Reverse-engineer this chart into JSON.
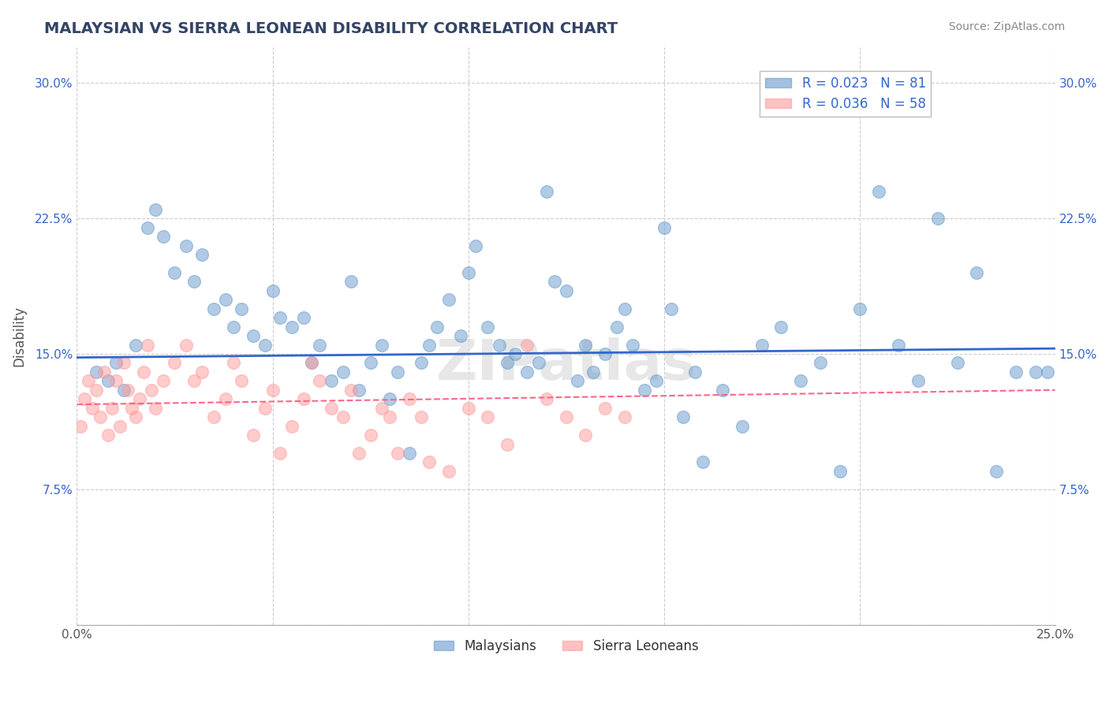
{
  "title": "MALAYSIAN VS SIERRA LEONEAN DISABILITY CORRELATION CHART",
  "source_text": "Source: ZipAtlas.com",
  "ylabel": "Disability",
  "legend_entry1": "R = 0.023   N = 81",
  "legend_entry2": "R = 0.036   N = 58",
  "legend_label1": "Malaysians",
  "legend_label2": "Sierra Leoneans",
  "xlim": [
    0.0,
    0.25
  ],
  "ylim": [
    0.0,
    0.32
  ],
  "xticks": [
    0.0,
    0.05,
    0.1,
    0.15,
    0.2,
    0.25
  ],
  "yticks": [
    0.0,
    0.075,
    0.15,
    0.225,
    0.3
  ],
  "grid_color": "#cccccc",
  "blue_color": "#6699cc",
  "pink_color": "#ff9999",
  "trendline_blue": "#3366cc",
  "trendline_pink": "#ff6688",
  "watermark_text": "ZIPatlas",
  "blue_scatter": [
    [
      0.005,
      0.14
    ],
    [
      0.008,
      0.135
    ],
    [
      0.01,
      0.145
    ],
    [
      0.012,
      0.13
    ],
    [
      0.015,
      0.155
    ],
    [
      0.018,
      0.22
    ],
    [
      0.02,
      0.23
    ],
    [
      0.022,
      0.215
    ],
    [
      0.025,
      0.195
    ],
    [
      0.028,
      0.21
    ],
    [
      0.03,
      0.19
    ],
    [
      0.032,
      0.205
    ],
    [
      0.035,
      0.175
    ],
    [
      0.038,
      0.18
    ],
    [
      0.04,
      0.165
    ],
    [
      0.042,
      0.175
    ],
    [
      0.045,
      0.16
    ],
    [
      0.048,
      0.155
    ],
    [
      0.05,
      0.185
    ],
    [
      0.052,
      0.17
    ],
    [
      0.055,
      0.165
    ],
    [
      0.058,
      0.17
    ],
    [
      0.06,
      0.145
    ],
    [
      0.062,
      0.155
    ],
    [
      0.065,
      0.135
    ],
    [
      0.068,
      0.14
    ],
    [
      0.07,
      0.19
    ],
    [
      0.072,
      0.13
    ],
    [
      0.075,
      0.145
    ],
    [
      0.078,
      0.155
    ],
    [
      0.08,
      0.125
    ],
    [
      0.082,
      0.14
    ],
    [
      0.085,
      0.095
    ],
    [
      0.088,
      0.145
    ],
    [
      0.09,
      0.155
    ],
    [
      0.092,
      0.165
    ],
    [
      0.095,
      0.18
    ],
    [
      0.098,
      0.16
    ],
    [
      0.1,
      0.195
    ],
    [
      0.102,
      0.21
    ],
    [
      0.105,
      0.165
    ],
    [
      0.108,
      0.155
    ],
    [
      0.11,
      0.145
    ],
    [
      0.112,
      0.15
    ],
    [
      0.115,
      0.14
    ],
    [
      0.118,
      0.145
    ],
    [
      0.12,
      0.24
    ],
    [
      0.122,
      0.19
    ],
    [
      0.125,
      0.185
    ],
    [
      0.128,
      0.135
    ],
    [
      0.13,
      0.155
    ],
    [
      0.132,
      0.14
    ],
    [
      0.135,
      0.15
    ],
    [
      0.138,
      0.165
    ],
    [
      0.14,
      0.175
    ],
    [
      0.142,
      0.155
    ],
    [
      0.145,
      0.13
    ],
    [
      0.148,
      0.135
    ],
    [
      0.15,
      0.22
    ],
    [
      0.152,
      0.175
    ],
    [
      0.155,
      0.115
    ],
    [
      0.158,
      0.14
    ],
    [
      0.16,
      0.09
    ],
    [
      0.165,
      0.13
    ],
    [
      0.17,
      0.11
    ],
    [
      0.175,
      0.155
    ],
    [
      0.18,
      0.165
    ],
    [
      0.185,
      0.135
    ],
    [
      0.19,
      0.145
    ],
    [
      0.195,
      0.085
    ],
    [
      0.2,
      0.175
    ],
    [
      0.205,
      0.24
    ],
    [
      0.21,
      0.155
    ],
    [
      0.215,
      0.135
    ],
    [
      0.22,
      0.225
    ],
    [
      0.225,
      0.145
    ],
    [
      0.23,
      0.195
    ],
    [
      0.235,
      0.085
    ],
    [
      0.24,
      0.14
    ],
    [
      0.245,
      0.14
    ],
    [
      0.248,
      0.14
    ]
  ],
  "pink_scatter": [
    [
      0.001,
      0.11
    ],
    [
      0.002,
      0.125
    ],
    [
      0.003,
      0.135
    ],
    [
      0.004,
      0.12
    ],
    [
      0.005,
      0.13
    ],
    [
      0.006,
      0.115
    ],
    [
      0.007,
      0.14
    ],
    [
      0.008,
      0.105
    ],
    [
      0.009,
      0.12
    ],
    [
      0.01,
      0.135
    ],
    [
      0.011,
      0.11
    ],
    [
      0.012,
      0.145
    ],
    [
      0.013,
      0.13
    ],
    [
      0.014,
      0.12
    ],
    [
      0.015,
      0.115
    ],
    [
      0.016,
      0.125
    ],
    [
      0.017,
      0.14
    ],
    [
      0.018,
      0.155
    ],
    [
      0.019,
      0.13
    ],
    [
      0.02,
      0.12
    ],
    [
      0.022,
      0.135
    ],
    [
      0.025,
      0.145
    ],
    [
      0.028,
      0.155
    ],
    [
      0.03,
      0.135
    ],
    [
      0.032,
      0.14
    ],
    [
      0.035,
      0.115
    ],
    [
      0.038,
      0.125
    ],
    [
      0.04,
      0.145
    ],
    [
      0.042,
      0.135
    ],
    [
      0.045,
      0.105
    ],
    [
      0.048,
      0.12
    ],
    [
      0.05,
      0.13
    ],
    [
      0.052,
      0.095
    ],
    [
      0.055,
      0.11
    ],
    [
      0.058,
      0.125
    ],
    [
      0.06,
      0.145
    ],
    [
      0.062,
      0.135
    ],
    [
      0.065,
      0.12
    ],
    [
      0.068,
      0.115
    ],
    [
      0.07,
      0.13
    ],
    [
      0.072,
      0.095
    ],
    [
      0.075,
      0.105
    ],
    [
      0.078,
      0.12
    ],
    [
      0.08,
      0.115
    ],
    [
      0.082,
      0.095
    ],
    [
      0.085,
      0.125
    ],
    [
      0.088,
      0.115
    ],
    [
      0.09,
      0.09
    ],
    [
      0.095,
      0.085
    ],
    [
      0.1,
      0.12
    ],
    [
      0.105,
      0.115
    ],
    [
      0.11,
      0.1
    ],
    [
      0.115,
      0.155
    ],
    [
      0.12,
      0.125
    ],
    [
      0.125,
      0.115
    ],
    [
      0.13,
      0.105
    ],
    [
      0.135,
      0.12
    ],
    [
      0.14,
      0.115
    ]
  ],
  "blue_trend_x": [
    0.0,
    0.25
  ],
  "blue_trend_y": [
    0.148,
    0.153
  ],
  "pink_trend_x": [
    0.0,
    0.25
  ],
  "pink_trend_y": [
    0.122,
    0.13
  ]
}
